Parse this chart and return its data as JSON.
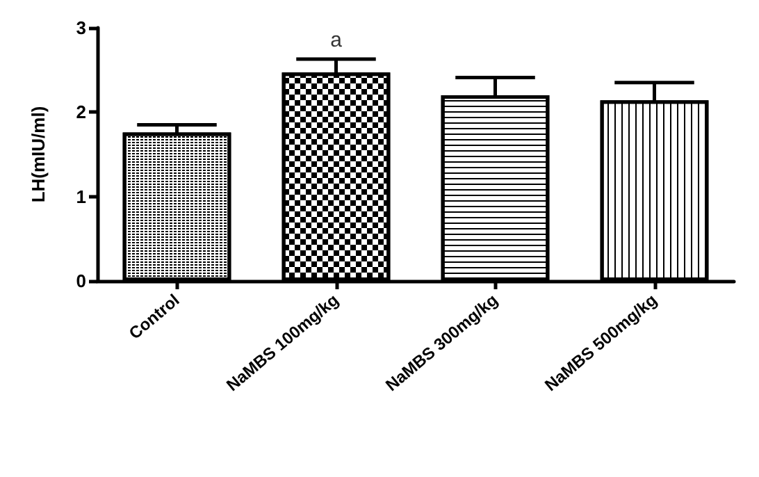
{
  "chart_data": {
    "type": "bar",
    "ylabel": "LH(mIU/ml)",
    "categories": [
      "Control",
      "NaMBS 100mg/kg",
      "NaMBS 300mg/kg",
      "NaMBS 500mg/kg"
    ],
    "values": [
      1.76,
      2.47,
      2.2,
      2.14
    ],
    "errors": [
      0.09,
      0.16,
      0.21,
      0.21
    ],
    "color": "#ffffff",
    "ylim": [
      0,
      3
    ],
    "yticks": [
      0,
      1,
      2,
      3
    ],
    "grid": false,
    "annotations": [
      {
        "text": "a",
        "x": "NaMBS 100mg/kg",
        "y": 2.63
      }
    ]
  }
}
